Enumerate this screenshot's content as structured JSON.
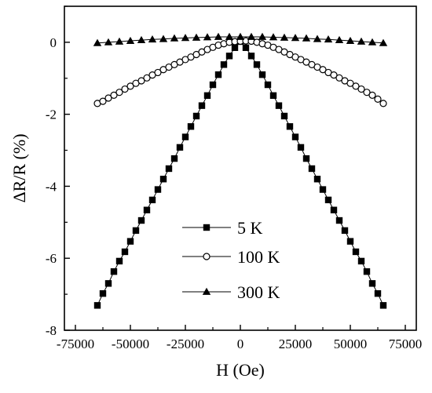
{
  "chart_data": {
    "type": "scatter",
    "title": "",
    "xlabel": "H (Oe)",
    "ylabel": "ΔR/R (%)",
    "xlim": [
      -80000,
      80000
    ],
    "ylim": [
      -8,
      1
    ],
    "x_ticks": [
      -75000,
      -50000,
      -25000,
      0,
      25000,
      50000,
      75000
    ],
    "y_ticks": [
      0,
      -2,
      -4,
      -6,
      -8
    ],
    "x_tick_labels": [
      "-75000",
      "-50000",
      "-25000",
      "0",
      "25000",
      "50000",
      "75000"
    ],
    "y_tick_labels": [
      "0",
      "-2",
      "-4",
      "-6",
      "-8"
    ],
    "grid": false,
    "legend_position": "lower-center",
    "series": [
      {
        "name": "5 K",
        "marker": "square-filled",
        "color": "#000000",
        "x": [
          -65000,
          -62500,
          -60000,
          -57500,
          -55000,
          -52500,
          -50000,
          -47500,
          -45000,
          -42500,
          -40000,
          -37500,
          -35000,
          -32500,
          -30000,
          -27500,
          -25000,
          -22500,
          -20000,
          -17500,
          -15000,
          -12500,
          -10000,
          -7500,
          -5000,
          -2500,
          0,
          2500,
          5000,
          7500,
          10000,
          12500,
          15000,
          17500,
          20000,
          22500,
          25000,
          27500,
          30000,
          32500,
          35000,
          37500,
          40000,
          42500,
          45000,
          47500,
          50000,
          52500,
          55000,
          57500,
          60000,
          62500,
          65000
        ],
        "y": [
          -7.31,
          -6.98,
          -6.7,
          -6.37,
          -6.08,
          -5.82,
          -5.53,
          -5.23,
          -4.95,
          -4.66,
          -4.38,
          -4.09,
          -3.8,
          -3.51,
          -3.23,
          -2.92,
          -2.63,
          -2.34,
          -2.05,
          -1.76,
          -1.48,
          -1.18,
          -0.9,
          -0.62,
          -0.38,
          -0.15,
          0.02,
          -0.15,
          -0.38,
          -0.62,
          -0.9,
          -1.18,
          -1.48,
          -1.76,
          -2.05,
          -2.34,
          -2.63,
          -2.92,
          -3.23,
          -3.51,
          -3.8,
          -4.09,
          -4.38,
          -4.66,
          -4.95,
          -5.23,
          -5.53,
          -5.82,
          -6.08,
          -6.37,
          -6.7,
          -6.98,
          -7.31
        ]
      },
      {
        "name": "100 K",
        "marker": "circle-open",
        "color": "#000000",
        "x": [
          -65000,
          -62500,
          -60000,
          -57500,
          -55000,
          -52500,
          -50000,
          -47500,
          -45000,
          -42500,
          -40000,
          -37500,
          -35000,
          -32500,
          -30000,
          -27500,
          -25000,
          -22500,
          -20000,
          -17500,
          -15000,
          -12500,
          -10000,
          -7500,
          -5000,
          -2500,
          0,
          2500,
          5000,
          7500,
          10000,
          12500,
          15000,
          17500,
          20000,
          22500,
          25000,
          27500,
          30000,
          32500,
          35000,
          37500,
          40000,
          42500,
          45000,
          47500,
          50000,
          52500,
          55000,
          57500,
          60000,
          62500,
          65000
        ],
        "y": [
          -1.7,
          -1.64,
          -1.55,
          -1.47,
          -1.39,
          -1.3,
          -1.22,
          -1.14,
          -1.07,
          -0.99,
          -0.91,
          -0.84,
          -0.76,
          -0.69,
          -0.62,
          -0.55,
          -0.48,
          -0.41,
          -0.34,
          -0.27,
          -0.2,
          -0.14,
          -0.08,
          -0.04,
          0.0,
          0.02,
          0.03,
          0.04,
          0.03,
          0.0,
          -0.04,
          -0.08,
          -0.14,
          -0.2,
          -0.27,
          -0.34,
          -0.41,
          -0.48,
          -0.55,
          -0.62,
          -0.69,
          -0.76,
          -0.84,
          -0.91,
          -0.99,
          -1.07,
          -1.14,
          -1.22,
          -1.3,
          -1.39,
          -1.47,
          -1.58,
          -1.7
        ]
      },
      {
        "name": "300 K",
        "marker": "triangle-filled",
        "color": "#000000",
        "x": [
          -65000,
          -60000,
          -55000,
          -50000,
          -45000,
          -40000,
          -35000,
          -30000,
          -25000,
          -20000,
          -15000,
          -10000,
          -5000,
          0,
          5000,
          10000,
          15000,
          20000,
          25000,
          30000,
          35000,
          40000,
          45000,
          50000,
          55000,
          60000,
          65000
        ],
        "y": [
          -0.02,
          0.0,
          0.02,
          0.04,
          0.06,
          0.08,
          0.09,
          0.11,
          0.12,
          0.13,
          0.14,
          0.15,
          0.15,
          0.15,
          0.15,
          0.15,
          0.14,
          0.13,
          0.12,
          0.11,
          0.09,
          0.08,
          0.06,
          0.04,
          0.02,
          0.0,
          -0.02
        ]
      }
    ]
  }
}
